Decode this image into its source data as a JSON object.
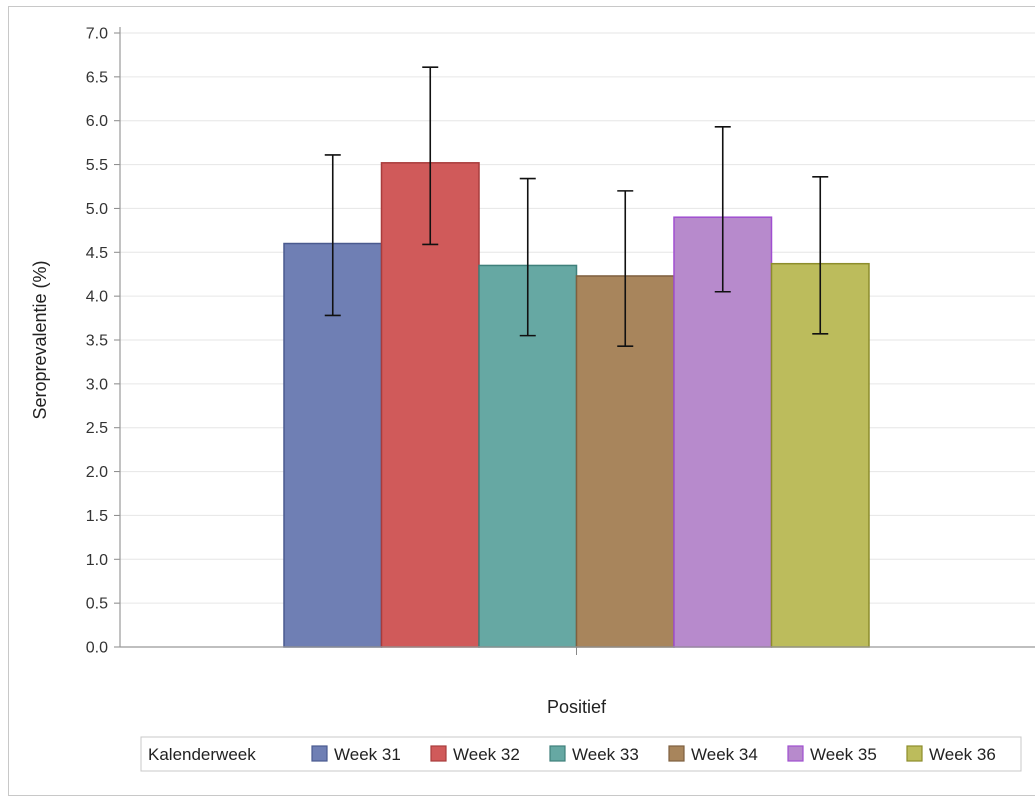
{
  "chart_data": {
    "type": "bar",
    "title": "",
    "xlabel": "Positief",
    "ylabel": "Seroprevalentie (%)",
    "ylim": [
      0,
      7.0
    ],
    "yticks": [
      "0.0",
      "0.5",
      "1.0",
      "1.5",
      "2.0",
      "2.5",
      "3.0",
      "3.5",
      "4.0",
      "4.5",
      "5.0",
      "5.5",
      "6.0",
      "6.5",
      "7.0"
    ],
    "grid": true,
    "legend_title": "Kalenderweek",
    "legend_position": "bottom",
    "categories": [
      "Positief"
    ],
    "series": [
      {
        "name": "Week 31",
        "values": [
          4.6
        ],
        "ci_low": [
          3.78
        ],
        "ci_high": [
          5.61
        ],
        "color": "#6f7fb4",
        "stroke": "#4a5a8f"
      },
      {
        "name": "Week 32",
        "values": [
          5.52
        ],
        "ci_low": [
          4.59
        ],
        "ci_high": [
          6.61
        ],
        "color": "#d05a5a",
        "stroke": "#a83c3c"
      },
      {
        "name": "Week 33",
        "values": [
          4.35
        ],
        "ci_low": [
          3.55
        ],
        "ci_high": [
          5.34
        ],
        "color": "#66a8a3",
        "stroke": "#3f807b"
      },
      {
        "name": "Week 34",
        "values": [
          4.23
        ],
        "ci_low": [
          3.43
        ],
        "ci_high": [
          5.2
        ],
        "color": "#a8855c",
        "stroke": "#7e6040"
      },
      {
        "name": "Week 35",
        "values": [
          4.9
        ],
        "ci_low": [
          4.05
        ],
        "ci_high": [
          5.93
        ],
        "color": "#b78acc",
        "stroke": "#a04fd0"
      },
      {
        "name": "Week 36",
        "values": [
          4.37
        ],
        "ci_low": [
          3.57
        ],
        "ci_high": [
          5.36
        ],
        "color": "#bcbc5c",
        "stroke": "#8d8d2c"
      }
    ]
  }
}
